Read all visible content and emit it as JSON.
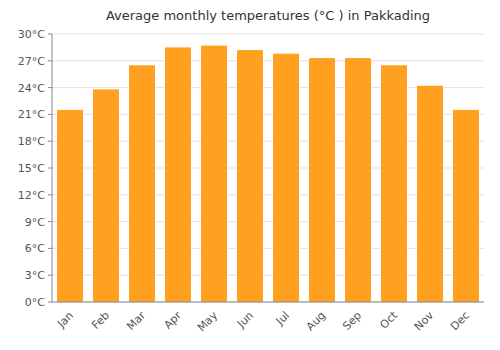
{
  "chart_data": {
    "type": "bar",
    "title": "Average monthly temperatures (°C ) in Pakkading",
    "categories": [
      "Jan",
      "Feb",
      "Mar",
      "Apr",
      "May",
      "Jun",
      "Jul",
      "Aug",
      "Sep",
      "Oct",
      "Nov",
      "Dec"
    ],
    "values": [
      21.5,
      23.8,
      26.5,
      28.5,
      28.7,
      28.2,
      27.8,
      27.3,
      27.3,
      26.5,
      24.2,
      21.5
    ],
    "color": "#FFA020",
    "ylim": [
      0,
      30
    ],
    "yticks": [
      {
        "value": 0,
        "label": "0°C"
      },
      {
        "value": 3,
        "label": "3°C"
      },
      {
        "value": 6,
        "label": "6°C"
      },
      {
        "value": 9,
        "label": "9°C"
      },
      {
        "value": 12,
        "label": "12°C"
      },
      {
        "value": 15,
        "label": "15°C"
      },
      {
        "value": 18,
        "label": "18°C"
      },
      {
        "value": 21,
        "label": "21°C"
      },
      {
        "value": 24,
        "label": "24°C"
      },
      {
        "value": 27,
        "label": "27°C"
      },
      {
        "value": 30,
        "label": "30°C"
      }
    ],
    "grid": true
  }
}
